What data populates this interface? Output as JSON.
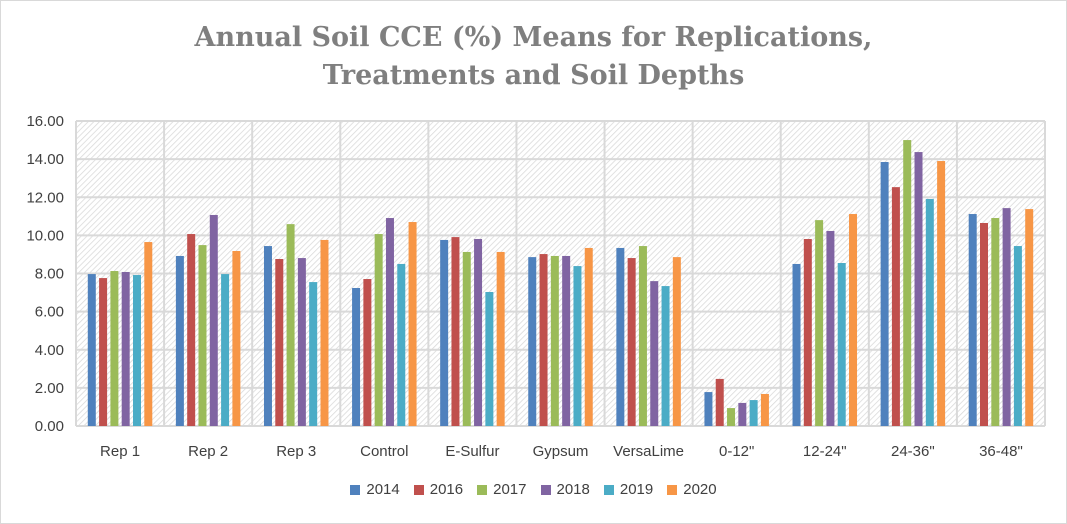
{
  "chart_data": {
    "type": "bar",
    "title_lines": [
      "Annual Soil CCE (%) Means for Replications,",
      "Treatments and Soil Depths"
    ],
    "xlabel": "",
    "ylabel": "",
    "ylim": [
      0,
      16
    ],
    "yticks": [
      "0.00",
      "2.00",
      "4.00",
      "6.00",
      "8.00",
      "10.00",
      "12.00",
      "14.00",
      "16.00"
    ],
    "grid": true,
    "legend_position": "bottom",
    "categories": [
      "Rep 1",
      "Rep 2",
      "Rep 3",
      "Control",
      "E-Sulfur",
      "Gypsum",
      "VersaLime",
      "0-12\"",
      "12-24\"",
      "24-36\"",
      "36-48\""
    ],
    "series": [
      {
        "name": "2014",
        "color": "#4f81bd",
        "values": [
          7.97,
          8.92,
          9.44,
          7.24,
          9.76,
          8.86,
          9.34,
          1.78,
          8.5,
          13.85,
          11.12
        ]
      },
      {
        "name": "2016",
        "color": "#c0504d",
        "values": [
          7.76,
          10.07,
          8.76,
          7.71,
          9.91,
          9.02,
          8.81,
          2.47,
          9.81,
          12.53,
          10.65
        ]
      },
      {
        "name": "2017",
        "color": "#9bbb59",
        "values": [
          8.13,
          9.49,
          10.59,
          10.07,
          9.13,
          8.92,
          9.44,
          0.94,
          10.8,
          15.0,
          10.91
        ]
      },
      {
        "name": "2018",
        "color": "#8064a2",
        "values": [
          8.08,
          11.07,
          8.81,
          10.91,
          9.81,
          8.92,
          7.6,
          1.21,
          10.23,
          14.37,
          11.43
        ]
      },
      {
        "name": "2019",
        "color": "#4bacc6",
        "values": [
          7.92,
          7.97,
          7.55,
          8.5,
          7.03,
          8.39,
          7.34,
          1.36,
          8.55,
          11.91,
          9.44
        ]
      },
      {
        "name": "2020",
        "color": "#f79646",
        "values": [
          9.65,
          9.18,
          9.76,
          10.7,
          9.13,
          9.34,
          8.86,
          1.68,
          11.12,
          13.9,
          11.38
        ]
      }
    ]
  }
}
